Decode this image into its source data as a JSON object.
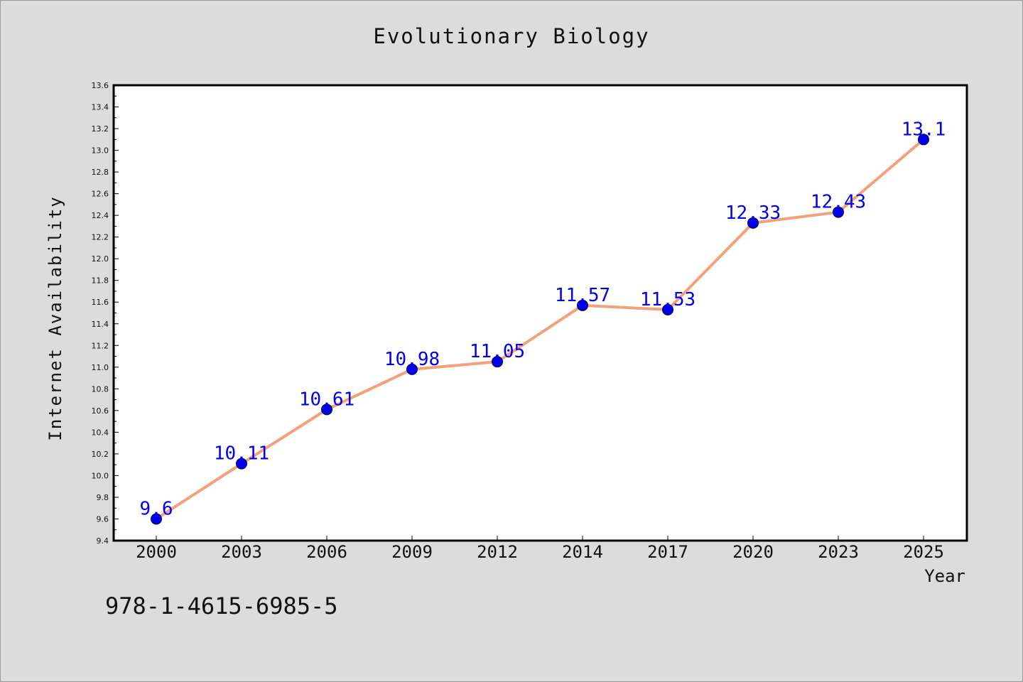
{
  "chart_data": {
    "type": "line",
    "title": "Evolutionary Biology",
    "xlabel": "Year",
    "ylabel": "Internet Availability",
    "categories": [
      "2000",
      "2003",
      "2006",
      "2009",
      "2012",
      "2014",
      "2017",
      "2020",
      "2023",
      "2025"
    ],
    "series": [
      {
        "values": [
          9.6,
          10.11,
          10.61,
          10.98,
          11.05,
          11.57,
          11.53,
          12.33,
          12.43,
          13.1
        ],
        "labels": [
          "9.6",
          "10.11",
          "10.61",
          "10.98",
          "11.05",
          "11.57",
          "11.53",
          "12.33",
          "12.43",
          "13.1"
        ],
        "line_color": "#f4a07a",
        "marker_color": "#0000ee",
        "label_color": "#0000ee"
      }
    ],
    "ylim": [
      9.4,
      13.6
    ],
    "yticks": [
      "9.4",
      "9.6",
      "9.8",
      "10.0",
      "10.2",
      "10.4",
      "10.6",
      "10.8",
      "11.0",
      "11.2",
      "11.4",
      "11.6",
      "11.8",
      "12.0",
      "12.2",
      "12.4",
      "12.6",
      "12.8",
      "13.0",
      "13.2",
      "13.4",
      "13.6"
    ],
    "grid": false,
    "legend": "none"
  },
  "footer": {
    "isbn": "978-1-4615-6985-5"
  }
}
